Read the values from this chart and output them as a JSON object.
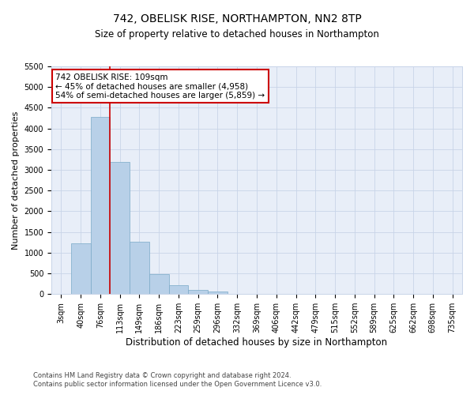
{
  "title": "742, OBELISK RISE, NORTHAMPTON, NN2 8TP",
  "subtitle": "Size of property relative to detached houses in Northampton",
  "xlabel": "Distribution of detached houses by size in Northampton",
  "ylabel": "Number of detached properties",
  "categories": [
    "3sqm",
    "40sqm",
    "76sqm",
    "113sqm",
    "149sqm",
    "186sqm",
    "223sqm",
    "259sqm",
    "296sqm",
    "332sqm",
    "369sqm",
    "406sqm",
    "442sqm",
    "479sqm",
    "515sqm",
    "552sqm",
    "589sqm",
    "625sqm",
    "662sqm",
    "698sqm",
    "735sqm"
  ],
  "values": [
    0,
    1230,
    4280,
    3200,
    1270,
    480,
    210,
    95,
    70,
    0,
    0,
    0,
    0,
    0,
    0,
    0,
    0,
    0,
    0,
    0,
    0
  ],
  "bar_color": "#b8d0e8",
  "bar_edge_color": "#7aaac8",
  "vline_x_index": 2.5,
  "vline_color": "#cc0000",
  "annotation_line1": "742 OBELISK RISE: 109sqm",
  "annotation_line2": "← 45% of detached houses are smaller (4,958)",
  "annotation_line3": "54% of semi-detached houses are larger (5,859) →",
  "annotation_box_color": "#ffffff",
  "annotation_box_edge_color": "#cc0000",
  "ylim": [
    0,
    5500
  ],
  "yticks": [
    0,
    500,
    1000,
    1500,
    2000,
    2500,
    3000,
    3500,
    4000,
    4500,
    5000,
    5500
  ],
  "footer_line1": "Contains HM Land Registry data © Crown copyright and database right 2024.",
  "footer_line2": "Contains public sector information licensed under the Open Government Licence v3.0.",
  "bg_color": "#e8eef8",
  "grid_color": "#c8d4e8",
  "title_fontsize": 10,
  "subtitle_fontsize": 8.5,
  "tick_fontsize": 7,
  "ylabel_fontsize": 8,
  "xlabel_fontsize": 8.5
}
